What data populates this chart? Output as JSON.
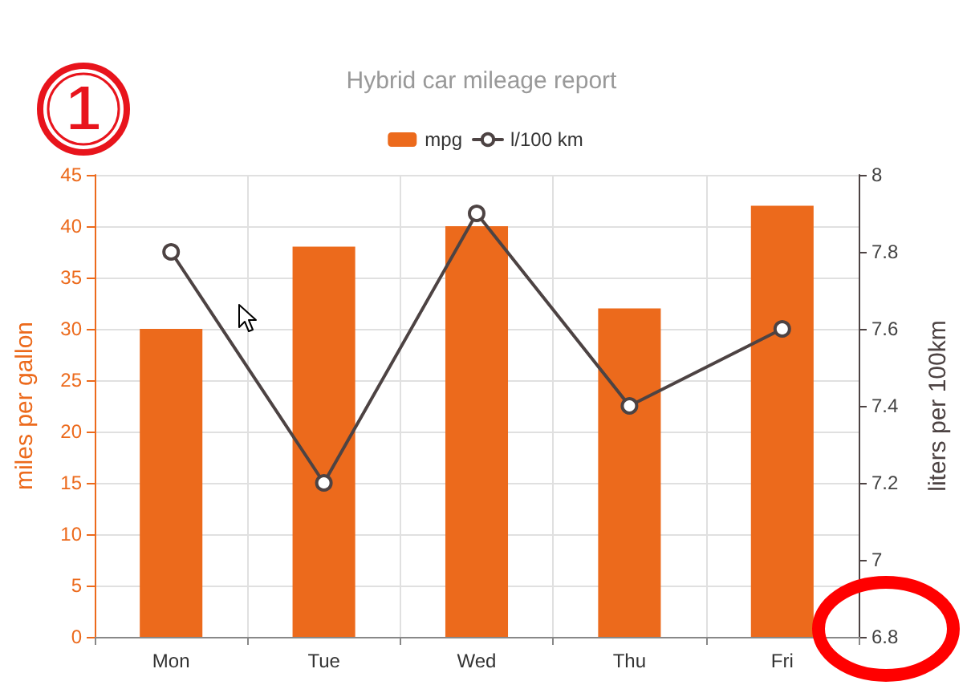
{
  "chart_data": {
    "type": "bar",
    "title": "Hybrid car mileage report",
    "categories": [
      "Mon",
      "Tue",
      "Wed",
      "Thu",
      "Fri"
    ],
    "series": [
      {
        "name": "mpg",
        "color": "#ec6a1c",
        "values": [
          30,
          38,
          40,
          32,
          42
        ]
      },
      {
        "name": "l/100 km",
        "type": "line",
        "axis": "y2",
        "color": "#4d4343",
        "values": [
          7.8,
          7.2,
          7.9,
          7.4,
          7.6
        ]
      }
    ],
    "ylabel": "miles per gallon",
    "y2label": "liters per 100km",
    "ylim": [
      0,
      45
    ],
    "yticks": [
      0,
      5,
      10,
      15,
      20,
      25,
      30,
      35,
      40,
      45
    ],
    "y2lim": [
      6.8,
      8
    ],
    "y2ticks": [
      6.8,
      7,
      7.2,
      7.4,
      7.6,
      7.8,
      8
    ],
    "grid": true,
    "legend": "top",
    "marker": "circle",
    "annotations": [
      "1"
    ]
  }
}
